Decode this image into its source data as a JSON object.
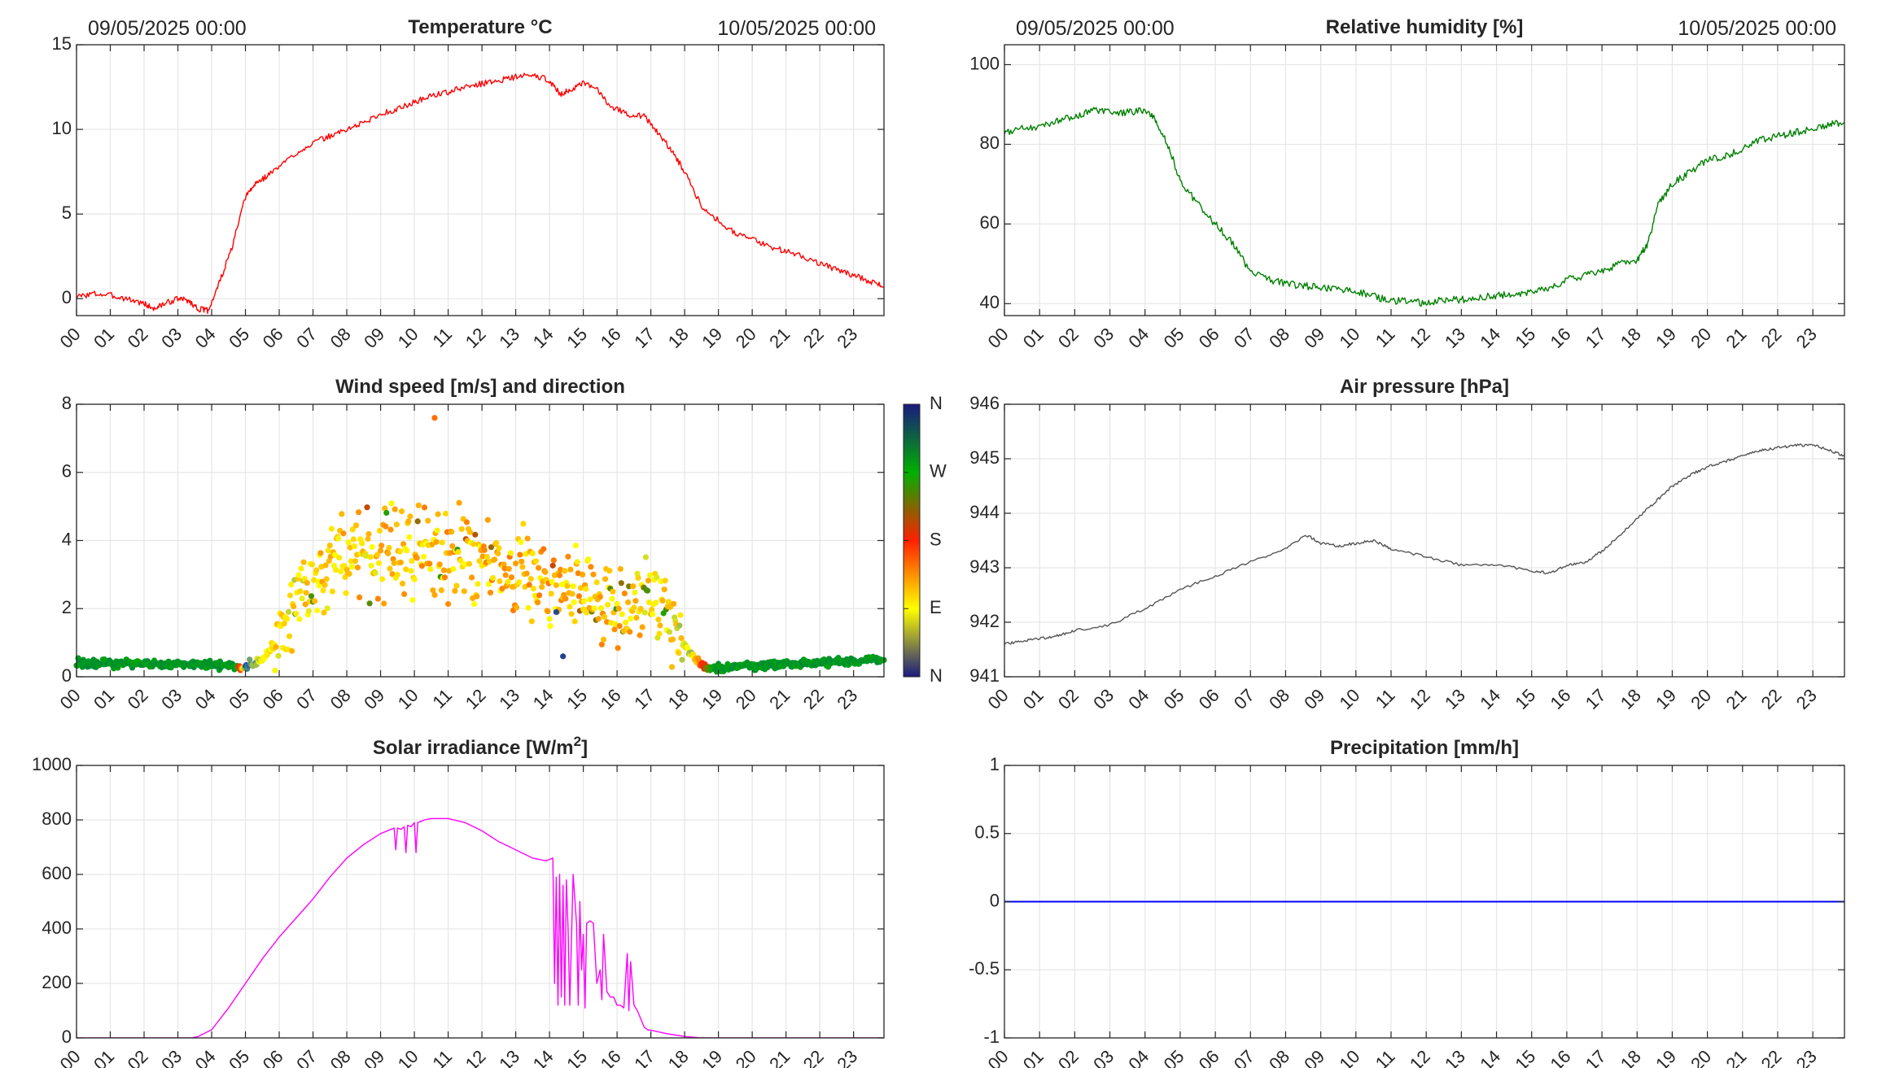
{
  "page": {
    "background": "#ffffff",
    "axis_color": "#262626",
    "grid_color": "#e6e6e6"
  },
  "chart_data": [
    {
      "id": "temperature",
      "type": "line",
      "title": "Temperature °C",
      "date_start": "09/05/2025 00:00",
      "date_end": "10/05/2025 00:00",
      "color": "#ff0000",
      "x_tick_labels": [
        "00",
        "01",
        "02",
        "03",
        "04",
        "05",
        "06",
        "07",
        "08",
        "09",
        "10",
        "11",
        "12",
        "13",
        "14",
        "15",
        "16",
        "17",
        "18",
        "19",
        "20",
        "21",
        "22",
        "23"
      ],
      "xlim": [
        0,
        23.9
      ],
      "ylim": [
        -1,
        15
      ],
      "y_ticks": [
        0,
        5,
        10,
        15
      ],
      "grid": true,
      "series": [
        {
          "x": [
            0,
            0.5,
            1,
            1.5,
            2,
            2.3,
            2.6,
            3,
            3.3,
            3.6,
            3.9,
            4.2,
            4.6,
            5,
            5.3,
            5.6,
            6,
            6.5,
            7,
            7.5,
            8,
            8.5,
            9,
            9.5,
            10,
            10.5,
            11,
            11.5,
            12,
            12.5,
            13,
            13.5,
            14,
            14.3,
            14.6,
            15,
            15.4,
            15.8,
            16.3,
            16.8,
            17.2,
            17.6,
            18,
            18.5,
            19,
            19.5,
            20,
            20.5,
            21,
            21.5,
            22,
            22.5,
            23,
            23.5,
            23.9
          ],
          "y": [
            0.1,
            0.3,
            0.2,
            0.0,
            -0.3,
            -0.6,
            -0.3,
            0.0,
            -0.1,
            -0.6,
            -0.7,
            0.8,
            3.0,
            6.0,
            6.8,
            7.2,
            7.8,
            8.6,
            9.2,
            9.6,
            10.0,
            10.4,
            10.9,
            11.2,
            11.6,
            12.0,
            12.2,
            12.5,
            12.7,
            12.9,
            13.1,
            13.2,
            12.9,
            12.1,
            12.3,
            12.7,
            12.4,
            11.4,
            10.9,
            10.8,
            9.8,
            8.8,
            7.5,
            5.5,
            4.6,
            3.9,
            3.5,
            3.1,
            2.8,
            2.5,
            2.1,
            1.7,
            1.4,
            1.0,
            0.7
          ]
        }
      ]
    },
    {
      "id": "humidity",
      "type": "line",
      "title": "Relative humidity [%]",
      "date_start": "09/05/2025 00:00",
      "date_end": "10/05/2025 00:00",
      "color": "#008000",
      "x_tick_labels": [
        "00",
        "01",
        "02",
        "03",
        "04",
        "05",
        "06",
        "07",
        "08",
        "09",
        "10",
        "11",
        "12",
        "13",
        "14",
        "15",
        "16",
        "17",
        "18",
        "19",
        "20",
        "21",
        "22",
        "23"
      ],
      "xlim": [
        0,
        23.9
      ],
      "ylim": [
        37,
        105
      ],
      "y_ticks": [
        40,
        60,
        80,
        100
      ],
      "grid": true,
      "series": [
        {
          "x": [
            0,
            0.5,
            1,
            1.5,
            2,
            2.5,
            3,
            3.5,
            4,
            4.3,
            4.6,
            5,
            5.5,
            6,
            6.5,
            7,
            7.5,
            8,
            8.5,
            9,
            9.5,
            10,
            10.5,
            11,
            11.5,
            12,
            12.5,
            13,
            13.5,
            14,
            14.5,
            15,
            15.5,
            16,
            16.5,
            17,
            17.5,
            18,
            18.3,
            18.6,
            19,
            19.5,
            20,
            20.5,
            21,
            21.5,
            22,
            22.5,
            23,
            23.5,
            23.9
          ],
          "y": [
            83,
            84,
            84.5,
            86,
            87,
            88.5,
            88,
            88,
            88.5,
            86,
            81,
            71,
            65,
            60,
            55,
            48,
            46,
            45,
            44.5,
            44,
            43.5,
            43,
            42,
            40.5,
            41,
            40,
            41,
            41,
            41.5,
            42,
            42.5,
            43,
            44,
            46,
            47,
            48,
            50,
            51,
            55,
            65,
            70,
            73,
            76,
            77,
            79,
            81,
            82,
            83,
            84,
            85,
            85.5
          ]
        }
      ]
    },
    {
      "id": "wind",
      "type": "scatter",
      "title": "Wind speed [m/s] and direction",
      "x_tick_labels": [
        "00",
        "01",
        "02",
        "03",
        "04",
        "05",
        "06",
        "07",
        "08",
        "09",
        "10",
        "11",
        "12",
        "13",
        "14",
        "15",
        "16",
        "17",
        "18",
        "19",
        "20",
        "21",
        "22",
        "23"
      ],
      "xlim": [
        0,
        23.9
      ],
      "ylim": [
        0,
        8
      ],
      "y_ticks": [
        0,
        2,
        4,
        6,
        8
      ],
      "grid": true,
      "colorbar": {
        "labels": [
          "N",
          "E",
          "S",
          "W",
          "N"
        ],
        "stops": [
          "#1a1a80",
          "#ffff00",
          "#ff2000",
          "#00b000",
          "#1a1a80"
        ]
      },
      "speed_profile": {
        "x": [
          0,
          4,
          4.7,
          5,
          5.5,
          6,
          6.5,
          7,
          7.5,
          8,
          9,
          10,
          11,
          12,
          13,
          14,
          15,
          16,
          17,
          17.5,
          18,
          18.5,
          18.8,
          19.5,
          24
        ],
        "y": [
          0.4,
          0.35,
          0.3,
          0.3,
          0.5,
          1.2,
          2.2,
          2.8,
          3.2,
          3.6,
          3.7,
          3.7,
          3.6,
          3.4,
          3.0,
          2.8,
          2.6,
          2.2,
          2.2,
          1.7,
          0.9,
          0.3,
          0.2,
          0.3,
          0.5
        ]
      },
      "direction_profile": {
        "x": [
          0,
          4.7,
          5.0,
          5.6,
          8,
          12,
          16,
          17.5,
          18.2,
          18.9,
          24
        ],
        "y": [
          290,
          290,
          40,
          95,
          110,
          120,
          115,
          105,
          80,
          290,
          290
        ]
      },
      "outliers": [
        {
          "x": 10.6,
          "speed": 7.6,
          "direction": 150
        },
        {
          "x": 14.4,
          "speed": 0.6,
          "direction": 20
        },
        {
          "x": 14.2,
          "speed": 1.9,
          "direction": 25
        }
      ]
    },
    {
      "id": "pressure",
      "type": "line",
      "title": "Air pressure [hPa]",
      "color": "#555555",
      "x_tick_labels": [
        "00",
        "01",
        "02",
        "03",
        "04",
        "05",
        "06",
        "07",
        "08",
        "09",
        "10",
        "11",
        "12",
        "13",
        "14",
        "15",
        "16",
        "17",
        "18",
        "19",
        "20",
        "21",
        "22",
        "23"
      ],
      "xlim": [
        0,
        23.9
      ],
      "ylim": [
        941,
        946
      ],
      "y_ticks": [
        941,
        942,
        943,
        944,
        945,
        946
      ],
      "grid": true,
      "series": [
        {
          "x": [
            0,
            0.5,
            1,
            1.5,
            2,
            3,
            4,
            5,
            6,
            7,
            8,
            8.6,
            9,
            9.5,
            10,
            10.5,
            11,
            12,
            13,
            14,
            15,
            15.5,
            16,
            16.5,
            17,
            17.5,
            18,
            18.5,
            19,
            19.5,
            20,
            20.5,
            21,
            21.5,
            22,
            22.5,
            23,
            23.5,
            23.9
          ],
          "y": [
            941.6,
            941.65,
            941.7,
            941.75,
            941.85,
            941.95,
            942.25,
            942.6,
            942.85,
            943.1,
            943.35,
            943.6,
            943.45,
            943.4,
            943.45,
            943.5,
            943.35,
            943.2,
            943.05,
            943.05,
            942.95,
            942.9,
            943.05,
            943.1,
            943.3,
            943.6,
            943.9,
            944.2,
            944.5,
            944.7,
            944.85,
            944.95,
            945.05,
            945.15,
            945.2,
            945.25,
            945.25,
            945.15,
            945.05
          ]
        }
      ]
    },
    {
      "id": "solar",
      "type": "line",
      "title": "Solar irradiance [W/m",
      "title_superscript": "2",
      "title_suffix": "]",
      "color": "#ff00ff",
      "x_tick_labels": [
        "00",
        "01",
        "02",
        "03",
        "04",
        "05",
        "06",
        "07",
        "08",
        "09",
        "10",
        "11",
        "12",
        "13",
        "14",
        "15",
        "16",
        "17",
        "18",
        "19",
        "20",
        "21",
        "22",
        "23"
      ],
      "xlim": [
        0,
        23.9
      ],
      "ylim": [
        0,
        1000
      ],
      "y_ticks": [
        0,
        200,
        400,
        600,
        800,
        1000
      ],
      "grid": true,
      "series": [
        {
          "x": [
            0,
            3.4,
            3.6,
            4,
            4.5,
            5,
            5.5,
            6,
            6.5,
            7,
            7.5,
            8,
            8.5,
            9,
            9.3,
            9.4,
            9.45,
            9.5,
            9.6,
            9.7,
            9.75,
            9.8,
            9.9,
            10,
            10.05,
            10.1,
            10.3,
            10.5,
            11,
            11.5,
            12,
            12.5,
            13,
            13.5,
            13.9,
            14.1,
            14.15,
            14.2,
            14.25,
            14.3,
            14.35,
            14.4,
            14.45,
            14.5,
            14.55,
            14.6,
            14.7,
            14.8,
            14.85,
            14.9,
            14.95,
            15.0,
            15.05,
            15.1,
            15.2,
            15.3,
            15.4,
            15.5,
            15.55,
            15.6,
            15.7,
            15.8,
            15.9,
            16.0,
            16.1,
            16.2,
            16.3,
            16.35,
            16.4,
            16.5,
            16.6,
            16.7,
            16.8,
            16.9,
            17.0,
            17.5,
            18,
            18.5,
            19,
            23.9
          ],
          "y": [
            0,
            0,
            5,
            30,
            110,
            200,
            290,
            370,
            440,
            510,
            590,
            660,
            710,
            750,
            765,
            770,
            690,
            770,
            765,
            775,
            680,
            780,
            775,
            790,
            680,
            790,
            800,
            805,
            805,
            790,
            760,
            720,
            690,
            660,
            650,
            660,
            200,
            590,
            120,
            600,
            150,
            560,
            120,
            580,
            400,
            120,
            600,
            420,
            120,
            500,
            250,
            380,
            110,
            420,
            430,
            420,
            200,
            250,
            140,
            380,
            170,
            150,
            150,
            120,
            120,
            110,
            310,
            100,
            280,
            120,
            100,
            70,
            40,
            30,
            28,
            15,
            5,
            0,
            0,
            0
          ]
        }
      ]
    },
    {
      "id": "precipitation",
      "type": "line",
      "title": "Precipitation [mm/h]",
      "color": "#0000ff",
      "x_tick_labels": [
        "00",
        "01",
        "02",
        "03",
        "04",
        "05",
        "06",
        "07",
        "08",
        "09",
        "10",
        "11",
        "12",
        "13",
        "14",
        "15",
        "16",
        "17",
        "18",
        "19",
        "20",
        "21",
        "22",
        "23"
      ],
      "xlim": [
        0,
        23.9
      ],
      "ylim": [
        -1,
        1
      ],
      "y_ticks": [
        -1,
        -0.5,
        0,
        0.5,
        1
      ],
      "grid": true,
      "series": [
        {
          "x": [
            0,
            23.9
          ],
          "y": [
            0,
            0
          ]
        }
      ]
    }
  ]
}
